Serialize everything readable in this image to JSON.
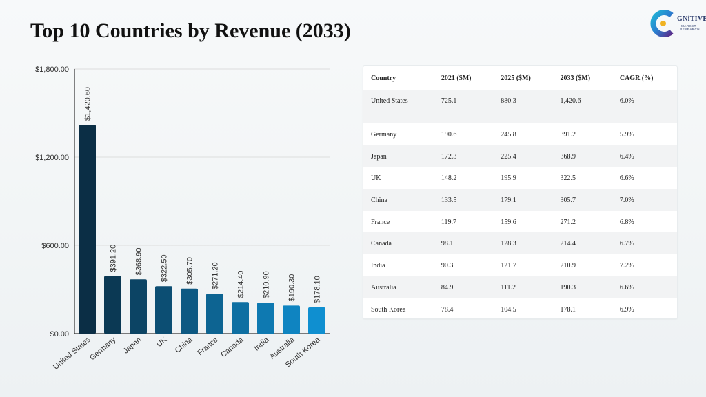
{
  "title": "Top 10 Countries by Revenue (2033)",
  "logo": {
    "name": "GNiTIVE",
    "sub": "MARKET RESEARCH",
    "icon": "cognitive-market-research-logo"
  },
  "colors": {
    "bar_dark": "#0b2e45",
    "bar_light": "#0f8fd0",
    "axis": "#333333",
    "grid": "#dddddd"
  },
  "chart_data": {
    "type": "bar",
    "title": "",
    "xlabel": "",
    "ylabel": "",
    "categories": [
      "United States",
      "Germany",
      "Japan",
      "UK",
      "China",
      "France",
      "Canada",
      "India",
      "Australia",
      "South Korea"
    ],
    "values": [
      1420.6,
      391.2,
      368.9,
      322.5,
      305.7,
      271.2,
      214.4,
      210.9,
      190.3,
      178.1
    ],
    "data_labels": [
      "$1,420.60",
      "$391.20",
      "$368.90",
      "$322.50",
      "$305.70",
      "$271.20",
      "$214.40",
      "$210.90",
      "$190.30",
      "$178.10"
    ],
    "yticks": [
      0,
      600,
      1200,
      1800
    ],
    "ytick_labels": [
      "$0.00",
      "$600.00",
      "$1,200.00",
      "$1,800.00"
    ],
    "ylim": [
      0,
      1800
    ],
    "grid": true,
    "legend": "none"
  },
  "table": {
    "headers": [
      "Country",
      "2021 ($M)",
      "2025 ($M)",
      "2033 ($M)",
      "CAGR (%)"
    ],
    "rows": [
      [
        "United States",
        "725.1",
        "880.3",
        "1,420.6",
        "6.0%"
      ],
      [
        "Germany",
        "190.6",
        "245.8",
        "391.2",
        "5.9%"
      ],
      [
        "Japan",
        "172.3",
        "225.4",
        "368.9",
        "6.4%"
      ],
      [
        "UK",
        "148.2",
        "195.9",
        "322.5",
        "6.6%"
      ],
      [
        "China",
        "133.5",
        "179.1",
        "305.7",
        "7.0%"
      ],
      [
        "France",
        "119.7",
        "159.6",
        "271.2",
        "6.8%"
      ],
      [
        "Canada",
        "98.1",
        "128.3",
        "214.4",
        "6.7%"
      ],
      [
        "India",
        "90.3",
        "121.7",
        "210.9",
        "7.2%"
      ],
      [
        "Australia",
        "84.9",
        "111.2",
        "190.3",
        "6.6%"
      ],
      [
        "South Korea",
        "78.4",
        "104.5",
        "178.1",
        "6.9%"
      ]
    ]
  }
}
